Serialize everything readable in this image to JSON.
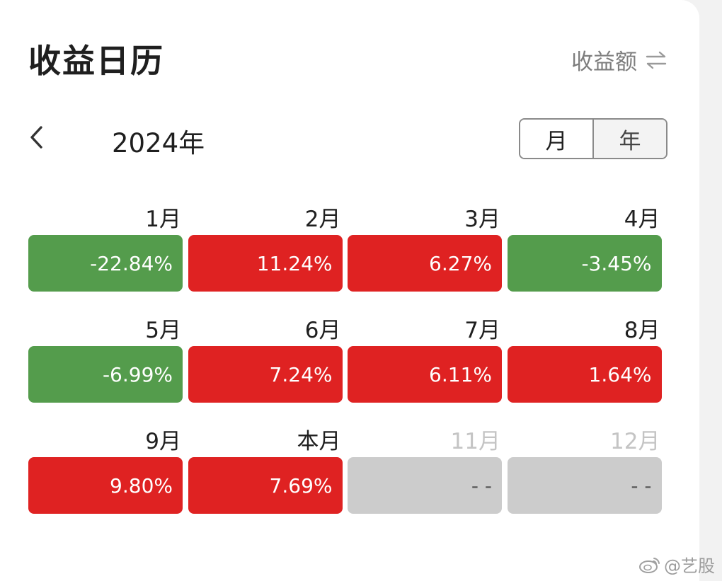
{
  "header": {
    "title": "收益日历",
    "metric_label": "收益额",
    "metric_icon": "swap-arrows-icon"
  },
  "nav": {
    "prev_icon": "chevron-left-icon",
    "year_label": "2024年",
    "view_toggle": [
      {
        "label": "月",
        "selected": false
      },
      {
        "label": "年",
        "selected": true
      }
    ]
  },
  "colors": {
    "gain": "#df2222",
    "loss": "#549c4c",
    "future": "#cccccc"
  },
  "months": [
    {
      "label": "1月",
      "value": "-22.84%",
      "status": "loss"
    },
    {
      "label": "2月",
      "value": "11.24%",
      "status": "gain"
    },
    {
      "label": "3月",
      "value": "6.27%",
      "status": "gain"
    },
    {
      "label": "4月",
      "value": "-3.45%",
      "status": "loss"
    },
    {
      "label": "5月",
      "value": "-6.99%",
      "status": "loss"
    },
    {
      "label": "6月",
      "value": "7.24%",
      "status": "gain"
    },
    {
      "label": "7月",
      "value": "6.11%",
      "status": "gain"
    },
    {
      "label": "8月",
      "value": "1.64%",
      "status": "gain"
    },
    {
      "label": "9月",
      "value": "9.80%",
      "status": "gain"
    },
    {
      "label": "本月",
      "value": "7.69%",
      "status": "gain"
    },
    {
      "label": "11月",
      "value": "- -",
      "status": "future"
    },
    {
      "label": "12月",
      "value": "- -",
      "status": "future"
    }
  ],
  "watermark": {
    "text": "@艺股",
    "icon": "weibo-logo-icon"
  }
}
